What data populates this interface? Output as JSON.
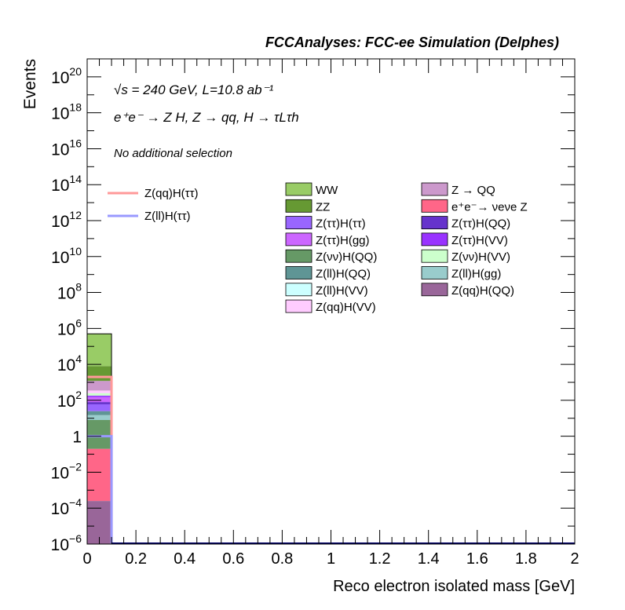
{
  "header": {
    "title": "FCCAnalyses: FCC-ee Simulation (Delphes)"
  },
  "annotations": {
    "line1": "√s = 240 GeV, L=10.8 ab⁻¹",
    "line2": "e⁺e⁻ → Z H, Z → qq, H → τLτh",
    "line3": "No additional selection"
  },
  "axes": {
    "xlabel": "Reco electron isolated mass [GeV]",
    "ylabel": "Events"
  },
  "chart_data": {
    "type": "bar",
    "stacked": true,
    "log_y": true,
    "xlim": [
      0,
      2
    ],
    "ylim": [
      1e-06,
      1e+21
    ],
    "x_ticks": [
      "0",
      "0.2",
      "0.4",
      "0.6",
      "0.8",
      "1",
      "1.2",
      "1.4",
      "1.6",
      "1.8",
      "2"
    ],
    "y_ticks": [
      {
        "value": 1e-06,
        "base": "10",
        "exp": "−6"
      },
      {
        "value": 0.0001,
        "base": "10",
        "exp": "−4"
      },
      {
        "value": 0.01,
        "base": "10",
        "exp": "−2"
      },
      {
        "value": 1,
        "base": "1",
        "exp": ""
      },
      {
        "value": 100.0,
        "base": "10",
        "exp": "2"
      },
      {
        "value": 10000.0,
        "base": "10",
        "exp": "4"
      },
      {
        "value": 1000000.0,
        "base": "10",
        "exp": "6"
      },
      {
        "value": 100000000.0,
        "base": "10",
        "exp": "8"
      },
      {
        "value": 10000000000.0,
        "base": "10",
        "exp": "10"
      },
      {
        "value": 1000000000000.0,
        "base": "10",
        "exp": "12"
      },
      {
        "value": 100000000000000.0,
        "base": "10",
        "exp": "14"
      },
      {
        "value": 1e+16,
        "base": "10",
        "exp": "16"
      },
      {
        "value": 1e+18,
        "base": "10",
        "exp": "18"
      },
      {
        "value": 1e+20,
        "base": "10",
        "exp": "20"
      }
    ],
    "bin": [
      0,
      0.1
    ],
    "stack": [
      {
        "name": "Z(qq)H(QQ)",
        "color": "#996699",
        "lo": 1e-06,
        "hi": 0.00025
      },
      {
        "name": "e⁺e⁻→ νeνe Z",
        "color": "#ff6688",
        "lo": 0.00025,
        "hi": 0.2
      },
      {
        "name": "Z(νν)H(QQ)",
        "color": "#669966",
        "lo": 0.2,
        "hi": 8
      },
      {
        "name": "Z(ll)H(gg)",
        "color": "#99cccc",
        "lo": 8,
        "hi": 15
      },
      {
        "name": "Z(ll)H(QQ)",
        "color": "#5f9595",
        "lo": 15,
        "hi": 25
      },
      {
        "name": "Z(ττ)H(ττ)",
        "color": "#9966ff",
        "lo": 25,
        "hi": 60
      },
      {
        "name": "Z(ττ)H(QQ)",
        "color": "#6633cc",
        "lo": 60,
        "hi": 80
      },
      {
        "name": "Z(ττ)H(gg)",
        "color": "#cc66ff",
        "lo": 80,
        "hi": 150
      },
      {
        "name": "Z(ττ)H(VV)",
        "color": "#9933ff",
        "lo": 150,
        "hi": 180
      },
      {
        "name": "Z(νν)H(VV)",
        "color": "#ccffcc",
        "lo": 180,
        "hi": 250
      },
      {
        "name": "Z(qq)H(VV)",
        "color": "#ffccff",
        "lo": 250,
        "hi": 350
      },
      {
        "name": "Z → QQ",
        "color": "#cc99cc",
        "lo": 350,
        "hi": 1200
      },
      {
        "name": "ZZ",
        "color": "#669933",
        "lo": 1200,
        "hi": 8000
      },
      {
        "name": "WW",
        "color": "#99cc66",
        "lo": 8000,
        "hi": 500000
      }
    ],
    "signals": [
      {
        "name": "Z(qq)H(ττ)",
        "color": "#ff9999",
        "value": 2000
      },
      {
        "name": "Z(ll)H(ττ)",
        "color": "#9999ff",
        "value": 1.0
      }
    ],
    "legend_signals": [
      {
        "label": "Z(qq)H(ττ)",
        "color": "#ff9999"
      },
      {
        "label": "Z(ll)H(ττ)",
        "color": "#9999ff"
      }
    ],
    "legend_col1": [
      {
        "label": "WW",
        "color": "#99cc66"
      },
      {
        "label": "ZZ",
        "color": "#669933"
      },
      {
        "label": "Z(ττ)H(ττ)",
        "color": "#9966ff"
      },
      {
        "label": "Z(ττ)H(gg)",
        "color": "#cc66ff"
      },
      {
        "label": "Z(νν)H(QQ)",
        "color": "#669966"
      },
      {
        "label": "Z(ll)H(QQ)",
        "color": "#5f9595"
      },
      {
        "label": "Z(ll)H(VV)",
        "color": "#ccffff"
      },
      {
        "label": "Z(qq)H(VV)",
        "color": "#ffccff"
      }
    ],
    "legend_col2": [
      {
        "label": "Z → QQ",
        "color": "#cc99cc"
      },
      {
        "label": "e⁺e⁻→ νeνe Z",
        "color": "#ff6688"
      },
      {
        "label": "Z(ττ)H(QQ)",
        "color": "#6633cc"
      },
      {
        "label": "Z(ττ)H(VV)",
        "color": "#9933ff"
      },
      {
        "label": "Z(νν)H(VV)",
        "color": "#ccffcc"
      },
      {
        "label": "Z(ll)H(gg)",
        "color": "#99cccc"
      },
      {
        "label": "Z(qq)H(QQ)",
        "color": "#996699"
      }
    ],
    "baseline_color": "#000066"
  }
}
